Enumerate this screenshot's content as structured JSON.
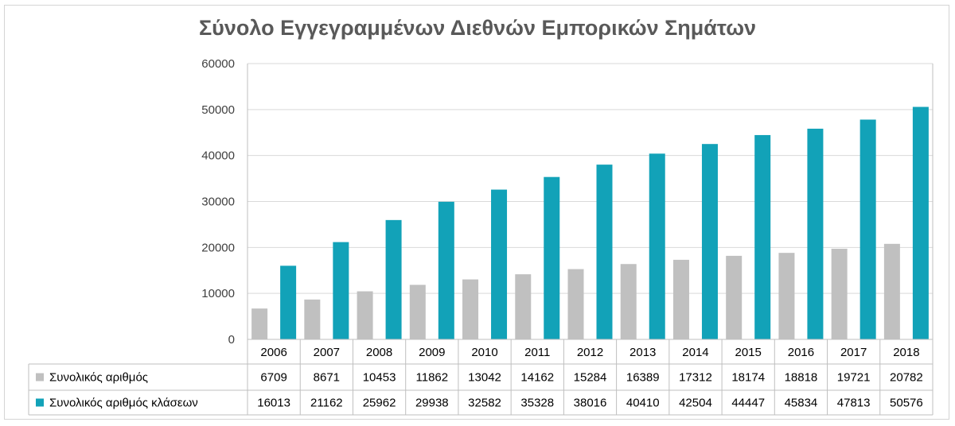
{
  "chart_data": {
    "type": "bar",
    "title": "Σύνολο Εγγεγραμμένων Διεθνών Εμπορικών Σημάτων",
    "categories": [
      "2006",
      "2007",
      "2008",
      "2009",
      "2010",
      "2011",
      "2012",
      "2013",
      "2014",
      "2015",
      "2016",
      "2017",
      "2018"
    ],
    "series": [
      {
        "name": "Συνολικός αριθμός",
        "color": "#c0c0c0",
        "values": [
          6709,
          8671,
          10453,
          11862,
          13042,
          14162,
          15284,
          16389,
          17312,
          18174,
          18818,
          19721,
          20782
        ]
      },
      {
        "name": "Συνολικός αριθμός κλάσεων",
        "color": "#12a2b8",
        "values": [
          16013,
          21162,
          25962,
          29938,
          32582,
          35328,
          38016,
          40410,
          42504,
          44447,
          45834,
          47813,
          50576
        ]
      }
    ],
    "ylim": [
      0,
      60000
    ],
    "yticks": [
      0,
      10000,
      20000,
      30000,
      40000,
      50000,
      60000
    ],
    "grid": true,
    "legend": "data-table"
  }
}
